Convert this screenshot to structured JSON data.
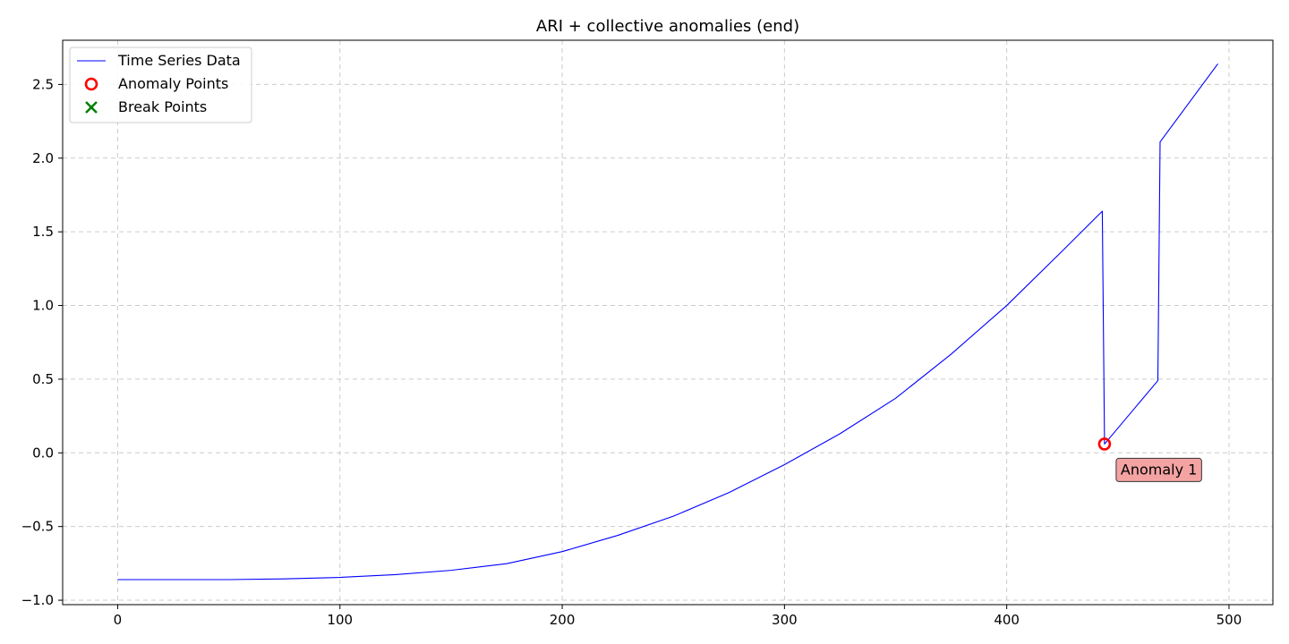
{
  "chart_data": {
    "type": "line",
    "title": "ARI + collective anomalies (end)",
    "xlabel": "",
    "ylabel": "",
    "xlim": [
      -24.75,
      519.75
    ],
    "ylim": [
      -1.03,
      2.8
    ],
    "xticks": [
      0,
      100,
      200,
      300,
      400,
      500
    ],
    "yticks": [
      -1.0,
      -0.5,
      0.0,
      0.5,
      1.0,
      1.5,
      2.0,
      2.5
    ],
    "ytick_labels": [
      "−1.0",
      "−0.5",
      "0.0",
      "0.5",
      "1.0",
      "1.5",
      "2.0",
      "2.5"
    ],
    "grid": true,
    "legend_position": "upper-left",
    "series": [
      {
        "name": "Time Series Data",
        "kind": "line",
        "color": "#0000ff",
        "x": [
          0,
          25,
          50,
          75,
          100,
          125,
          150,
          175,
          200,
          225,
          250,
          275,
          300,
          325,
          350,
          375,
          400,
          425,
          443,
          444,
          468,
          469,
          495
        ],
        "y": [
          -0.86,
          -0.86,
          -0.86,
          -0.855,
          -0.845,
          -0.826,
          -0.797,
          -0.752,
          -0.67,
          -0.56,
          -0.43,
          -0.27,
          -0.08,
          0.13,
          0.37,
          0.67,
          1.0,
          1.37,
          1.64,
          0.06,
          0.49,
          2.11,
          2.64
        ]
      },
      {
        "name": "Anomaly Points",
        "kind": "scatter",
        "marker": "circle-open",
        "color": "#ff0000",
        "x": [
          444
        ],
        "y": [
          0.06
        ]
      },
      {
        "name": "Break Points",
        "kind": "scatter",
        "marker": "x",
        "color": "#008000",
        "x": [],
        "y": []
      }
    ],
    "annotations": [
      {
        "text": "Anomaly 1",
        "x": 444,
        "y": 0.06,
        "box_color": "#f4a3a3"
      }
    ]
  }
}
